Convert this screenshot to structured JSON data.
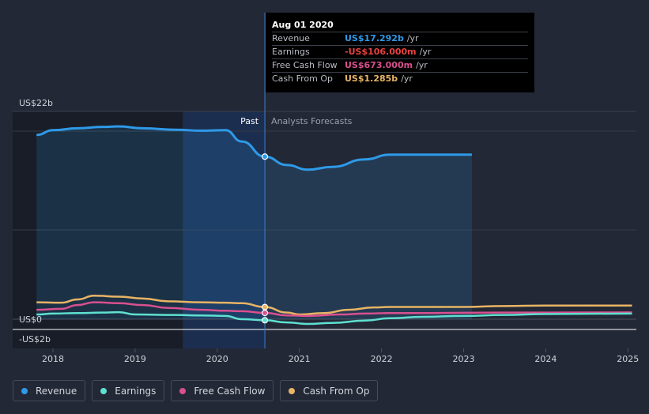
{
  "tooltip": {
    "date": "Aug 01 2020",
    "rows": [
      {
        "label": "Revenue",
        "value": "US$17.292b",
        "unit": "/yr",
        "color": "#2e9ae8"
      },
      {
        "label": "Earnings",
        "value": "-US$106.000m",
        "unit": "/yr",
        "color": "#e8423f"
      },
      {
        "label": "Free Cash Flow",
        "value": "US$673.000m",
        "unit": "/yr",
        "color": "#d8508f"
      },
      {
        "label": "Cash From Op",
        "value": "US$1.285b",
        "unit": "/yr",
        "color": "#e8b465"
      }
    ]
  },
  "legend": [
    {
      "label": "Revenue",
      "color": "#2e9ae8"
    },
    {
      "label": "Earnings",
      "color": "#5fe0d0"
    },
    {
      "label": "Free Cash Flow",
      "color": "#d8508f"
    },
    {
      "label": "Cash From Op",
      "color": "#e8b465"
    }
  ],
  "chart_data": {
    "type": "line",
    "title": "",
    "y_tick_labels": [
      "US$22b",
      "US$0",
      "-US$2b"
    ],
    "ylim": [
      -2,
      22
    ],
    "xlim": [
      2017.5,
      2025.05
    ],
    "x_ticks": [
      2018,
      2019,
      2020,
      2021,
      2022,
      2023,
      2024,
      2025
    ],
    "x_tick_labels": [
      "2018",
      "2019",
      "2020",
      "2021",
      "2022",
      "2023",
      "2024",
      "2025"
    ],
    "past_label": "Past",
    "forecast_label": "Analysts Forecasts",
    "current_x": 2020.58,
    "highlight_start_x": 2019.58,
    "series": [
      {
        "name": "Revenue",
        "color": "#2e9ae8",
        "area": true,
        "points": [
          [
            2017.8,
            19.6
          ],
          [
            2018.0,
            20.1
          ],
          [
            2018.3,
            20.3
          ],
          [
            2018.6,
            20.45
          ],
          [
            2018.8,
            20.5
          ],
          [
            2019.1,
            20.3
          ],
          [
            2019.5,
            20.15
          ],
          [
            2019.8,
            20.05
          ],
          [
            2020.1,
            20.1
          ],
          [
            2020.3,
            18.9
          ],
          [
            2020.58,
            17.29
          ],
          [
            2020.85,
            16.4
          ],
          [
            2021.1,
            15.9
          ],
          [
            2021.4,
            16.2
          ],
          [
            2021.8,
            17.0
          ],
          [
            2022.1,
            17.5
          ],
          [
            2022.5,
            17.5
          ],
          [
            2023.1,
            17.5
          ]
        ]
      },
      {
        "name": "Earnings",
        "color": "#5fe0d0",
        "area": false,
        "points": [
          [
            2017.8,
            0.5
          ],
          [
            2018.0,
            0.6
          ],
          [
            2018.3,
            0.65
          ],
          [
            2018.6,
            0.7
          ],
          [
            2018.8,
            0.75
          ],
          [
            2019.0,
            0.5
          ],
          [
            2019.5,
            0.45
          ],
          [
            2019.8,
            0.4
          ],
          [
            2020.1,
            0.35
          ],
          [
            2020.3,
            0.0
          ],
          [
            2020.58,
            -0.11
          ],
          [
            2020.85,
            -0.35
          ],
          [
            2021.1,
            -0.5
          ],
          [
            2021.4,
            -0.4
          ],
          [
            2021.8,
            -0.15
          ],
          [
            2022.1,
            0.1
          ],
          [
            2022.5,
            0.25
          ],
          [
            2023.0,
            0.35
          ],
          [
            2023.5,
            0.45
          ],
          [
            2024.0,
            0.55
          ],
          [
            2025.05,
            0.6
          ]
        ]
      },
      {
        "name": "Free Cash Flow",
        "color": "#d8508f",
        "area": false,
        "points": [
          [
            2017.8,
            1.0
          ],
          [
            2018.1,
            1.1
          ],
          [
            2018.3,
            1.5
          ],
          [
            2018.5,
            1.8
          ],
          [
            2018.8,
            1.7
          ],
          [
            2019.1,
            1.5
          ],
          [
            2019.4,
            1.2
          ],
          [
            2019.8,
            1.0
          ],
          [
            2020.1,
            0.9
          ],
          [
            2020.3,
            0.85
          ],
          [
            2020.58,
            0.67
          ],
          [
            2020.85,
            0.4
          ],
          [
            2021.1,
            0.35
          ],
          [
            2021.5,
            0.5
          ],
          [
            2021.8,
            0.6
          ],
          [
            2022.1,
            0.65
          ],
          [
            2022.5,
            0.65
          ],
          [
            2023.0,
            0.68
          ],
          [
            2023.5,
            0.7
          ],
          [
            2024.0,
            0.7
          ],
          [
            2025.05,
            0.72
          ]
        ]
      },
      {
        "name": "Cash From Op",
        "color": "#e8b465",
        "area": false,
        "points": [
          [
            2017.8,
            1.8
          ],
          [
            2018.1,
            1.75
          ],
          [
            2018.3,
            2.1
          ],
          [
            2018.5,
            2.5
          ],
          [
            2018.8,
            2.4
          ],
          [
            2019.1,
            2.2
          ],
          [
            2019.4,
            1.9
          ],
          [
            2019.8,
            1.8
          ],
          [
            2020.1,
            1.75
          ],
          [
            2020.3,
            1.7
          ],
          [
            2020.58,
            1.29
          ],
          [
            2020.85,
            0.7
          ],
          [
            2021.0,
            0.5
          ],
          [
            2021.3,
            0.65
          ],
          [
            2021.6,
            1.0
          ],
          [
            2021.9,
            1.25
          ],
          [
            2022.1,
            1.3
          ],
          [
            2022.5,
            1.3
          ],
          [
            2023.0,
            1.3
          ],
          [
            2023.5,
            1.4
          ],
          [
            2024.0,
            1.45
          ],
          [
            2025.05,
            1.45
          ]
        ]
      }
    ]
  }
}
